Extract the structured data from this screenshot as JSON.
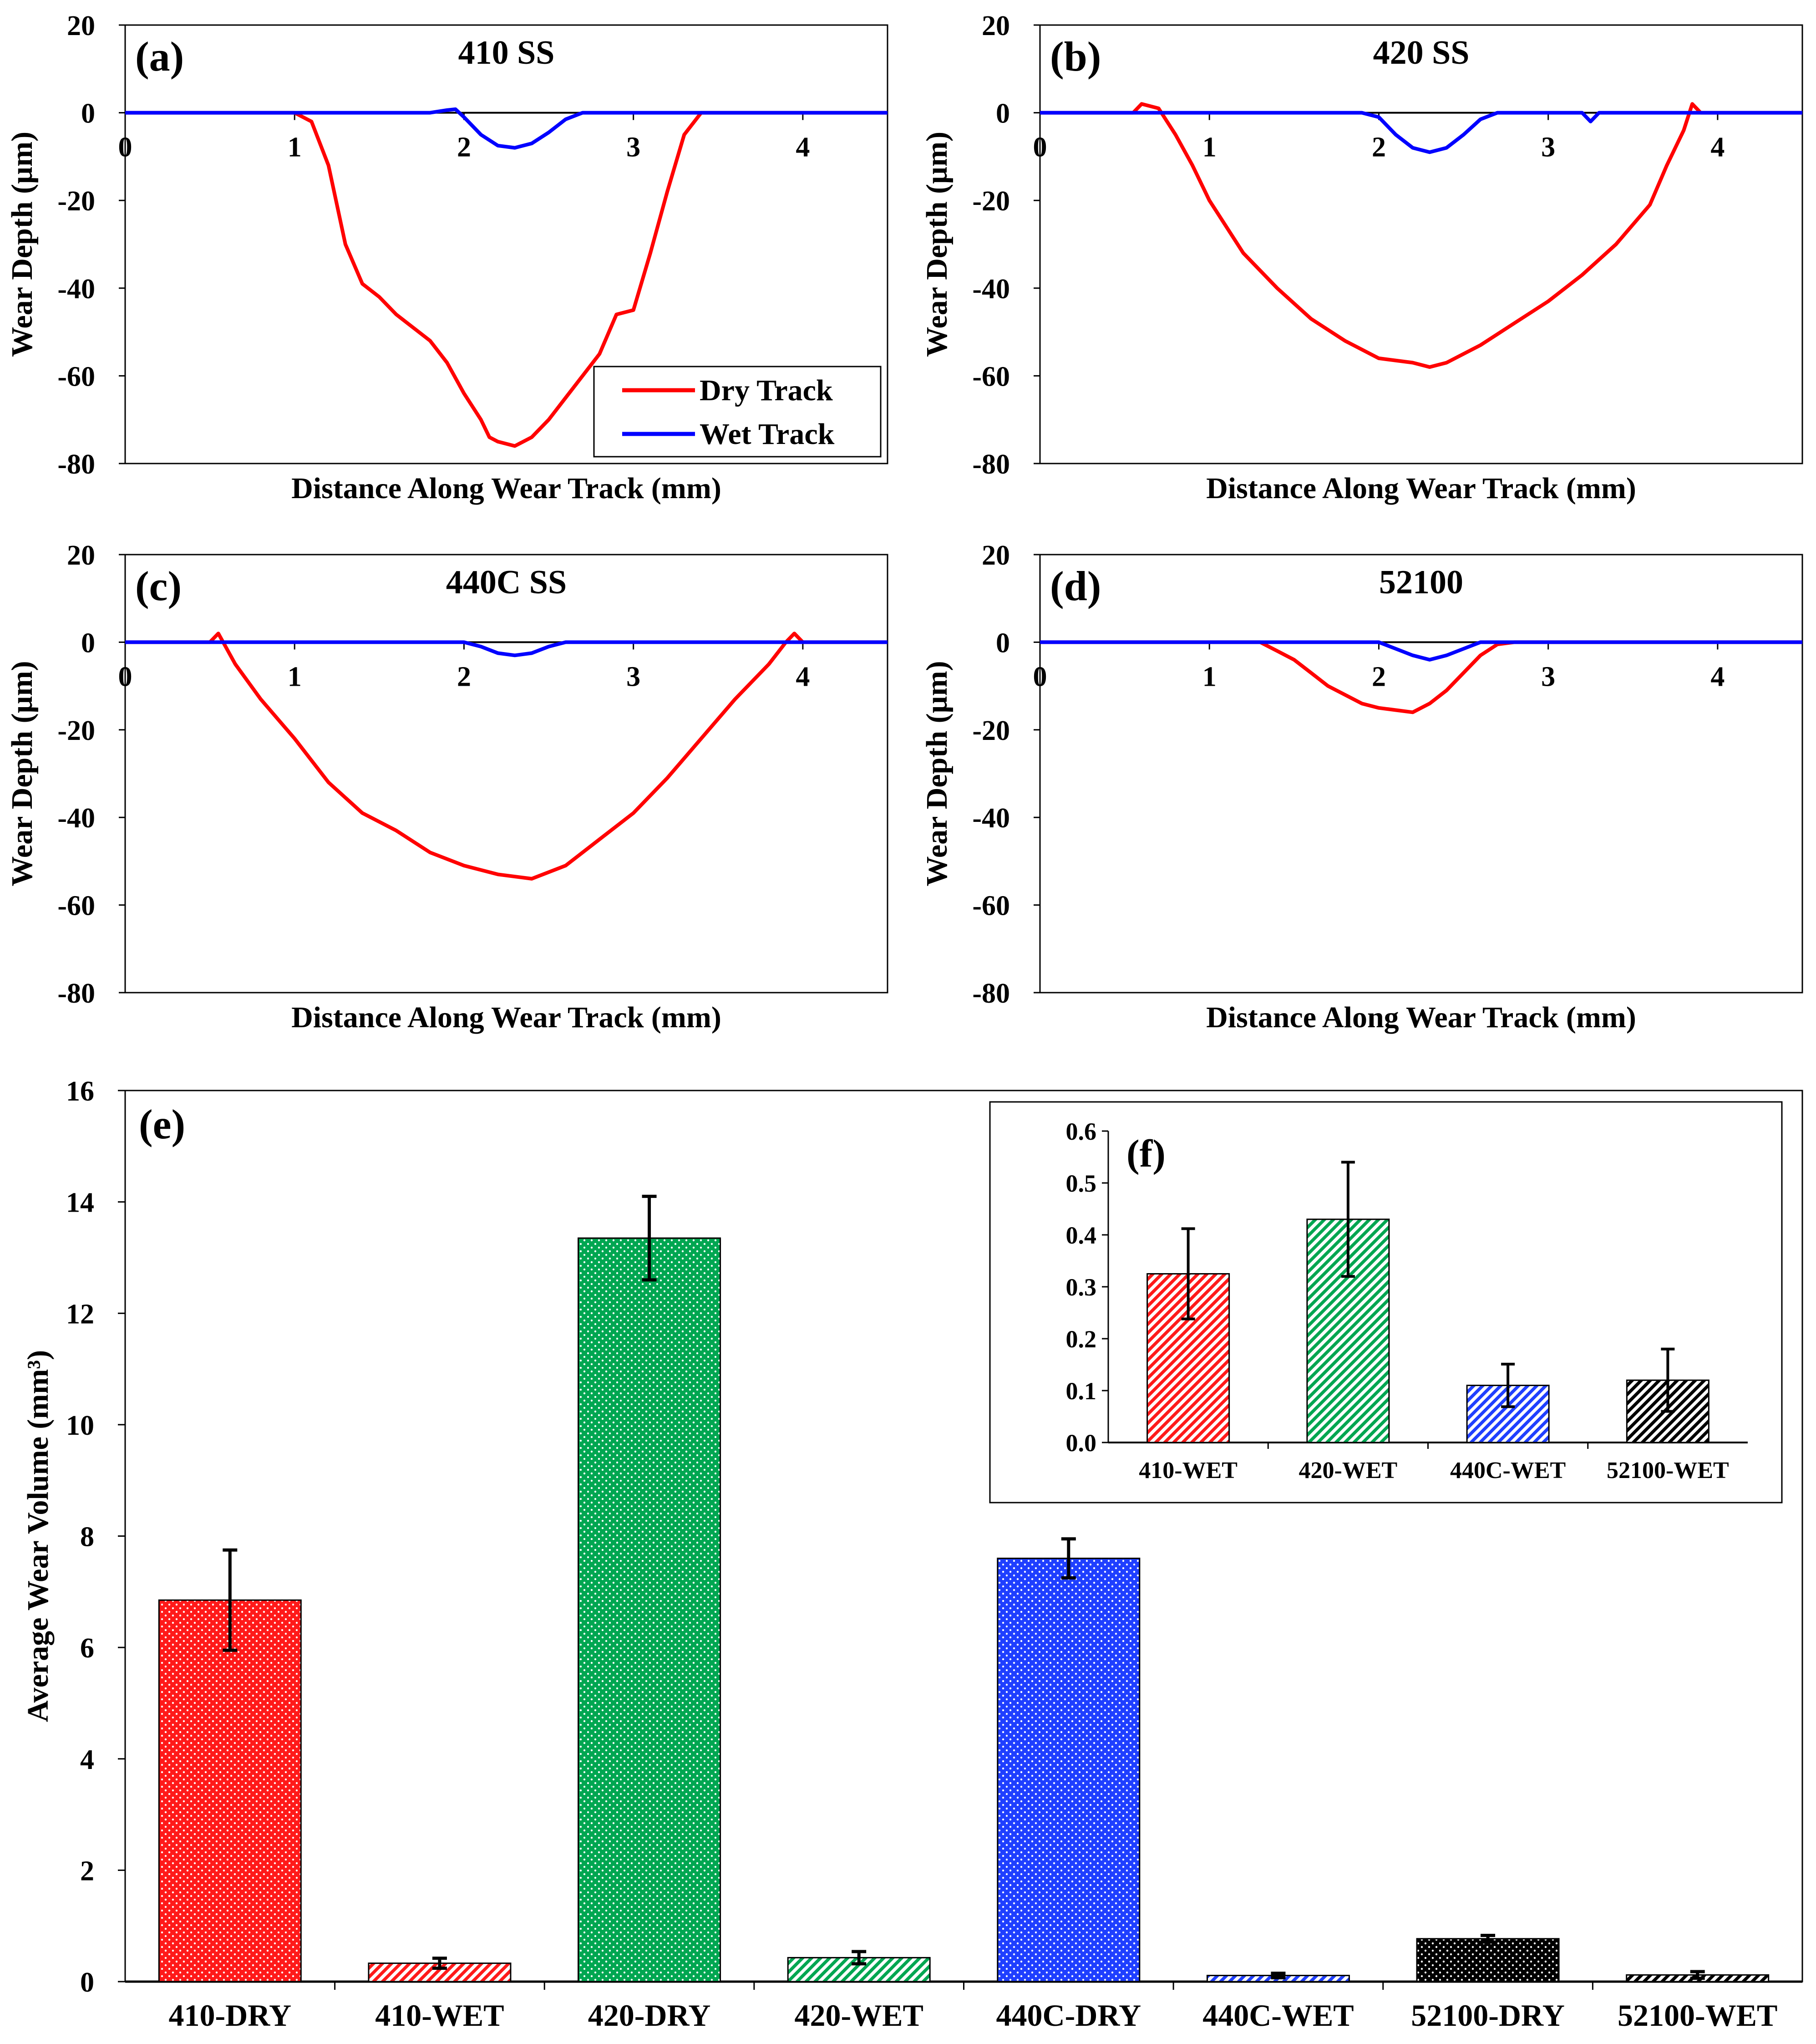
{
  "colors": {
    "dry": "#ff0000",
    "wet": "#0000ff",
    "green": "#00a651",
    "blue": "#1f3fff",
    "black": "#000000",
    "red_bar": "#ff1a1a"
  },
  "chart_data": [
    {
      "id": "a",
      "type": "line",
      "panel_label": "(a)",
      "title": "410 SS",
      "xlabel": "Distance Along Wear Track (mm)",
      "ylabel": "Wear Depth (µm)",
      "xlim": [
        0,
        4.5
      ],
      "ylim": [
        -80,
        20
      ],
      "xticks": [
        "0",
        "1",
        "2",
        "3",
        "4"
      ],
      "yticks": [
        "20",
        "0",
        "-20",
        "-40",
        "-60",
        "-80"
      ],
      "legend": {
        "position": "bottom-right",
        "entries": [
          "Dry Track",
          "Wet Track"
        ]
      },
      "series": [
        {
          "name": "Dry Track",
          "color": "#ff0000",
          "x": [
            0,
            1.0,
            1.1,
            1.2,
            1.3,
            1.4,
            1.5,
            1.6,
            1.7,
            1.8,
            1.9,
            2.0,
            2.1,
            2.15,
            2.2,
            2.3,
            2.4,
            2.5,
            2.6,
            2.7,
            2.8,
            2.9,
            3.0,
            3.1,
            3.2,
            3.3,
            3.4,
            4.5
          ],
          "y": [
            0,
            0,
            -2,
            -12,
            -30,
            -39,
            -42,
            -46,
            -49,
            -52,
            -57,
            -64,
            -70,
            -74,
            -75,
            -76,
            -74,
            -70,
            -65,
            -60,
            -55,
            -46,
            -45,
            -32,
            -18,
            -5,
            0,
            0
          ]
        },
        {
          "name": "Wet Track",
          "color": "#0000ff",
          "x": [
            0,
            1.8,
            1.9,
            1.95,
            2.0,
            2.1,
            2.2,
            2.3,
            2.4,
            2.5,
            2.6,
            2.7,
            4.5
          ],
          "y": [
            0,
            0,
            0.6,
            0.8,
            -1,
            -5,
            -7.5,
            -8,
            -7,
            -4.5,
            -1.5,
            0,
            0
          ]
        }
      ]
    },
    {
      "id": "b",
      "type": "line",
      "panel_label": "(b)",
      "title": "420 SS",
      "xlabel": "Distance Along Wear Track (mm)",
      "ylabel": "Wear Depth (µm)",
      "xlim": [
        0,
        4.5
      ],
      "ylim": [
        -80,
        20
      ],
      "xticks": [
        "0",
        "1",
        "2",
        "3",
        "4"
      ],
      "yticks": [
        "20",
        "0",
        "-20",
        "-40",
        "-60",
        "-80"
      ],
      "series": [
        {
          "name": "Dry Track",
          "color": "#ff0000",
          "x": [
            0,
            0.55,
            0.6,
            0.7,
            0.8,
            0.9,
            1.0,
            1.2,
            1.4,
            1.6,
            1.8,
            2.0,
            2.2,
            2.3,
            2.4,
            2.6,
            2.8,
            3.0,
            3.2,
            3.4,
            3.6,
            3.7,
            3.8,
            3.85,
            3.9,
            4.0,
            4.5
          ],
          "y": [
            0,
            0,
            2,
            1,
            -5,
            -12,
            -20,
            -32,
            -40,
            -47,
            -52,
            -56,
            -57,
            -58,
            -57,
            -53,
            -48,
            -43,
            -37,
            -30,
            -21,
            -12,
            -4,
            2,
            0,
            0,
            0
          ]
        },
        {
          "name": "Wet Track",
          "color": "#0000ff",
          "x": [
            0,
            1.9,
            2.0,
            2.1,
            2.2,
            2.3,
            2.4,
            2.5,
            2.6,
            2.7,
            3.2,
            3.25,
            3.3,
            4.5
          ],
          "y": [
            0,
            0,
            -1,
            -5,
            -8,
            -9,
            -8,
            -5,
            -1.5,
            0,
            0,
            -2,
            0,
            0
          ]
        }
      ]
    },
    {
      "id": "c",
      "type": "line",
      "panel_label": "(c)",
      "title": "440C SS",
      "xlabel": "Distance Along Wear Track (mm)",
      "ylabel": "Wear Depth (µm)",
      "xlim": [
        0,
        4.5
      ],
      "ylim": [
        -80,
        20
      ],
      "xticks": [
        "0",
        "1",
        "2",
        "3",
        "4"
      ],
      "yticks": [
        "20",
        "0",
        "-20",
        "-40",
        "-60",
        "-80"
      ],
      "series": [
        {
          "name": "Dry Track",
          "color": "#ff0000",
          "x": [
            0,
            0.5,
            0.55,
            0.65,
            0.8,
            1.0,
            1.2,
            1.4,
            1.6,
            1.8,
            2.0,
            2.2,
            2.4,
            2.6,
            2.8,
            3.0,
            3.2,
            3.4,
            3.6,
            3.8,
            3.9,
            3.95,
            4.0,
            4.5
          ],
          "y": [
            0,
            0,
            2,
            -5,
            -13,
            -22,
            -32,
            -39,
            -43,
            -48,
            -51,
            -53,
            -54,
            -51,
            -45,
            -39,
            -31,
            -22,
            -13,
            -5,
            0,
            2,
            0,
            0
          ]
        },
        {
          "name": "Wet Track",
          "color": "#0000ff",
          "x": [
            0,
            2.0,
            2.1,
            2.2,
            2.3,
            2.4,
            2.5,
            2.6,
            4.5
          ],
          "y": [
            0,
            0,
            -1,
            -2.5,
            -3,
            -2.5,
            -1,
            0,
            0
          ]
        }
      ]
    },
    {
      "id": "d",
      "type": "line",
      "panel_label": "(d)",
      "title": "52100",
      "xlabel": "Distance Along Wear Track (mm)",
      "ylabel": "Wear Depth (µm)",
      "xlim": [
        0,
        4.5
      ],
      "ylim": [
        -80,
        20
      ],
      "xticks": [
        "0",
        "1",
        "2",
        "3",
        "4"
      ],
      "yticks": [
        "20",
        "0",
        "-20",
        "-40",
        "-60",
        "-80"
      ],
      "series": [
        {
          "name": "Dry Track",
          "color": "#ff0000",
          "x": [
            0,
            1.3,
            1.4,
            1.5,
            1.6,
            1.7,
            1.8,
            1.9,
            2.0,
            2.1,
            2.2,
            2.3,
            2.4,
            2.5,
            2.6,
            2.7,
            2.8,
            4.5
          ],
          "y": [
            0,
            0,
            -2,
            -4,
            -7,
            -10,
            -12,
            -14,
            -15,
            -15.5,
            -16,
            -14,
            -11,
            -7,
            -3,
            -0.5,
            0,
            0
          ]
        },
        {
          "name": "Wet Track",
          "color": "#0000ff",
          "x": [
            0,
            2.0,
            2.1,
            2.2,
            2.3,
            2.4,
            2.5,
            2.6,
            4.5
          ],
          "y": [
            0,
            0,
            -1.5,
            -3,
            -4,
            -3,
            -1.5,
            0,
            0
          ]
        }
      ]
    },
    {
      "id": "e",
      "type": "bar",
      "panel_label": "(e)",
      "ylabel": "Average Wear Volume (mm³)",
      "ylim": [
        0,
        16
      ],
      "yticks": [
        "0",
        "2",
        "4",
        "6",
        "8",
        "10",
        "12",
        "14",
        "16"
      ],
      "categories": [
        "410-DRY",
        "410-WET",
        "420-DRY",
        "420-WET",
        "440C-DRY",
        "440C-WET",
        "52100-DRY",
        "52100-WET"
      ],
      "values": [
        6.85,
        0.33,
        13.35,
        0.43,
        7.6,
        0.11,
        0.77,
        0.12
      ],
      "errors": [
        0.9,
        0.09,
        0.75,
        0.11,
        0.35,
        0.04,
        0.06,
        0.06
      ],
      "bar_colors": [
        "#ff1a1a",
        "#ff1a1a",
        "#00a651",
        "#00a651",
        "#1f3fff",
        "#1f3fff",
        "#000000",
        "#000000"
      ],
      "patterns": [
        "dots",
        "hatch",
        "dots",
        "hatch",
        "dots",
        "hatch",
        "dots",
        "hatch"
      ]
    },
    {
      "id": "f",
      "type": "bar",
      "panel_label": "(f)",
      "ylim": [
        0,
        0.6
      ],
      "yticks": [
        "0.0",
        "0.1",
        "0.2",
        "0.3",
        "0.4",
        "0.5",
        "0.6"
      ],
      "categories": [
        "410-WET",
        "420-WET",
        "440C-WET",
        "52100-WET"
      ],
      "values": [
        0.325,
        0.43,
        0.11,
        0.12
      ],
      "errors": [
        0.087,
        0.11,
        0.041,
        0.06
      ],
      "bar_colors": [
        "#ff1a1a",
        "#00a651",
        "#1f3fff",
        "#000000"
      ],
      "patterns": [
        "hatch",
        "hatch",
        "hatch",
        "hatch"
      ]
    }
  ]
}
